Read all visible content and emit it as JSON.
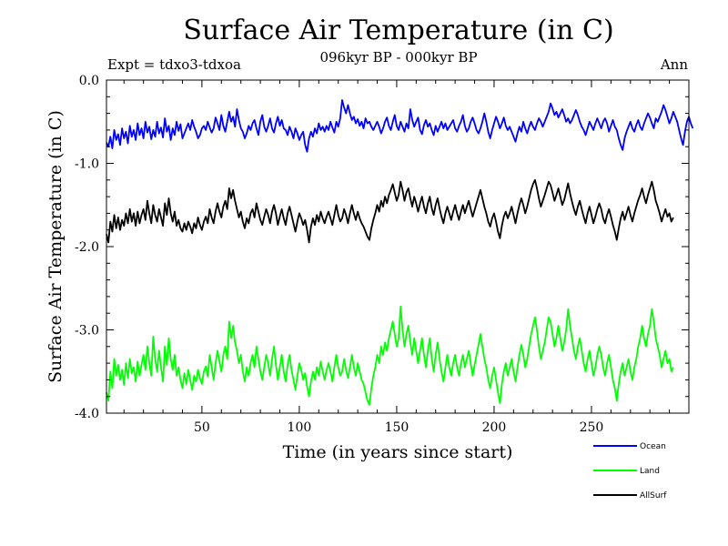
{
  "chart_data": {
    "type": "line",
    "title": "Surface Air Temperature (in C)",
    "subtitle": "096kyr BP - 000kyr BP",
    "experiment": "Expt = tdxo3-tdxoa",
    "season": "Ann",
    "xlabel": "Time (in years since start)",
    "ylabel": "Surface Air Temperature (in C)",
    "xlim": [
      1,
      300
    ],
    "ylim": [
      -4.0,
      0.0
    ],
    "x_ticks": [
      50,
      100,
      150,
      200,
      250
    ],
    "y_ticks": [
      "0.0",
      "-1.0",
      "-2.0",
      "-3.0",
      "-4.0"
    ],
    "y_tick_values": [
      0.0,
      -1.0,
      -2.0,
      -3.0,
      -4.0
    ],
    "grid": false,
    "legend_position": "bottom-right",
    "x_start": 1,
    "series": [
      {
        "name": "Ocean",
        "color": "#0000ff",
        "values": [
          -0.75,
          -0.8,
          -0.68,
          -0.82,
          -0.6,
          -0.72,
          -0.65,
          -0.78,
          -0.58,
          -0.7,
          -0.62,
          -0.76,
          -0.55,
          -0.68,
          -0.6,
          -0.72,
          -0.52,
          -0.66,
          -0.58,
          -0.7,
          -0.5,
          -0.63,
          -0.56,
          -0.71,
          -0.6,
          -0.68,
          -0.5,
          -0.64,
          -0.57,
          -0.69,
          -0.46,
          -0.62,
          -0.55,
          -0.72,
          -0.58,
          -0.66,
          -0.5,
          -0.61,
          -0.53,
          -0.7,
          -0.64,
          -0.58,
          -0.52,
          -0.6,
          -0.48,
          -0.56,
          -0.62,
          -0.7,
          -0.66,
          -0.58,
          -0.55,
          -0.6,
          -0.5,
          -0.57,
          -0.63,
          -0.58,
          -0.45,
          -0.52,
          -0.6,
          -0.42,
          -0.55,
          -0.62,
          -0.5,
          -0.38,
          -0.5,
          -0.44,
          -0.56,
          -0.35,
          -0.48,
          -0.58,
          -0.62,
          -0.7,
          -0.64,
          -0.55,
          -0.6,
          -0.52,
          -0.48,
          -0.58,
          -0.66,
          -0.5,
          -0.42,
          -0.56,
          -0.62,
          -0.55,
          -0.46,
          -0.58,
          -0.63,
          -0.52,
          -0.44,
          -0.55,
          -0.48,
          -0.58,
          -0.6,
          -0.66,
          -0.56,
          -0.62,
          -0.7,
          -0.58,
          -0.64,
          -0.72,
          -0.66,
          -0.62,
          -0.78,
          -0.86,
          -0.7,
          -0.62,
          -0.68,
          -0.58,
          -0.64,
          -0.52,
          -0.6,
          -0.56,
          -0.62,
          -0.55,
          -0.6,
          -0.5,
          -0.57,
          -0.63,
          -0.5,
          -0.56,
          -0.46,
          -0.24,
          -0.33,
          -0.4,
          -0.3,
          -0.4,
          -0.48,
          -0.44,
          -0.52,
          -0.47,
          -0.55,
          -0.5,
          -0.58,
          -0.46,
          -0.52,
          -0.5,
          -0.56,
          -0.6,
          -0.55,
          -0.5,
          -0.56,
          -0.64,
          -0.58,
          -0.5,
          -0.45,
          -0.55,
          -0.6,
          -0.5,
          -0.42,
          -0.55,
          -0.6,
          -0.5,
          -0.56,
          -0.62,
          -0.52,
          -0.58,
          -0.35,
          -0.48,
          -0.56,
          -0.5,
          -0.45,
          -0.6,
          -0.65,
          -0.54,
          -0.48,
          -0.56,
          -0.52,
          -0.6,
          -0.66,
          -0.55,
          -0.62,
          -0.56,
          -0.5,
          -0.58,
          -0.52,
          -0.6,
          -0.56,
          -0.52,
          -0.48,
          -0.58,
          -0.62,
          -0.55,
          -0.5,
          -0.42,
          -0.55,
          -0.62,
          -0.58,
          -0.5,
          -0.45,
          -0.52,
          -0.6,
          -0.64,
          -0.58,
          -0.5,
          -0.4,
          -0.5,
          -0.62,
          -0.7,
          -0.6,
          -0.52,
          -0.44,
          -0.5,
          -0.58,
          -0.52,
          -0.45,
          -0.55,
          -0.6,
          -0.56,
          -0.62,
          -0.68,
          -0.74,
          -0.64,
          -0.56,
          -0.62,
          -0.5,
          -0.58,
          -0.64,
          -0.56,
          -0.5,
          -0.56,
          -0.6,
          -0.52,
          -0.46,
          -0.5,
          -0.56,
          -0.5,
          -0.44,
          -0.38,
          -0.28,
          -0.34,
          -0.42,
          -0.38,
          -0.45,
          -0.4,
          -0.35,
          -0.42,
          -0.5,
          -0.46,
          -0.52,
          -0.48,
          -0.42,
          -0.36,
          -0.42,
          -0.5,
          -0.56,
          -0.6,
          -0.66,
          -0.58,
          -0.5,
          -0.55,
          -0.6,
          -0.52,
          -0.46,
          -0.52,
          -0.58,
          -0.5,
          -0.46,
          -0.52,
          -0.62,
          -0.55,
          -0.48,
          -0.56,
          -0.6,
          -0.7,
          -0.78,
          -0.84,
          -0.7,
          -0.62,
          -0.56,
          -0.5,
          -0.58,
          -0.62,
          -0.54,
          -0.48,
          -0.56,
          -0.6,
          -0.52,
          -0.46,
          -0.4,
          -0.45,
          -0.52,
          -0.58,
          -0.46,
          -0.5,
          -0.44,
          -0.38,
          -0.3,
          -0.36,
          -0.44,
          -0.52,
          -0.46,
          -0.38,
          -0.44,
          -0.5,
          -0.6,
          -0.7,
          -0.78,
          -0.62,
          -0.5,
          -0.44,
          -0.52,
          -0.58
        ],
        "legend_label": "Ocean"
      },
      {
        "name": "Land",
        "color": "#00ff00",
        "values": [
          -3.75,
          -3.85,
          -3.5,
          -3.7,
          -3.35,
          -3.55,
          -3.42,
          -3.6,
          -3.48,
          -3.66,
          -3.4,
          -3.58,
          -3.35,
          -3.52,
          -3.45,
          -3.62,
          -3.38,
          -3.55,
          -3.42,
          -3.3,
          -3.48,
          -3.2,
          -3.4,
          -3.55,
          -3.08,
          -3.35,
          -3.5,
          -3.25,
          -3.45,
          -3.62,
          -3.2,
          -3.42,
          -3.1,
          -3.35,
          -3.48,
          -3.3,
          -3.55,
          -3.45,
          -3.6,
          -3.7,
          -3.52,
          -3.65,
          -3.48,
          -3.6,
          -3.72,
          -3.55,
          -3.62,
          -3.48,
          -3.58,
          -3.65,
          -3.5,
          -3.44,
          -3.56,
          -3.3,
          -3.45,
          -3.6,
          -3.4,
          -3.25,
          -3.38,
          -3.5,
          -3.3,
          -3.2,
          -3.35,
          -2.9,
          -3.1,
          -2.95,
          -3.15,
          -3.25,
          -3.4,
          -3.3,
          -3.5,
          -3.62,
          -3.45,
          -3.55,
          -3.4,
          -3.3,
          -3.45,
          -3.2,
          -3.35,
          -3.5,
          -3.6,
          -3.45,
          -3.3,
          -3.4,
          -3.55,
          -3.35,
          -3.2,
          -3.42,
          -3.6,
          -3.45,
          -3.3,
          -3.5,
          -3.62,
          -3.42,
          -3.3,
          -3.48,
          -3.6,
          -3.72,
          -3.55,
          -3.4,
          -3.48,
          -3.6,
          -3.52,
          -3.68,
          -3.8,
          -3.62,
          -3.5,
          -3.6,
          -3.45,
          -3.55,
          -3.38,
          -3.5,
          -3.6,
          -3.48,
          -3.4,
          -3.5,
          -3.62,
          -3.45,
          -3.3,
          -3.45,
          -3.55,
          -3.5,
          -3.35,
          -3.48,
          -3.58,
          -3.45,
          -3.3,
          -3.45,
          -3.55,
          -3.4,
          -3.5,
          -3.6,
          -3.65,
          -3.75,
          -3.85,
          -3.9,
          -3.7,
          -3.55,
          -3.45,
          -3.3,
          -3.4,
          -3.2,
          -3.3,
          -3.15,
          -3.25,
          -3.1,
          -3.0,
          -2.9,
          -3.05,
          -3.2,
          -3.1,
          -2.72,
          -3.0,
          -3.2,
          -3.05,
          -2.95,
          -3.15,
          -3.3,
          -3.1,
          -3.25,
          -3.4,
          -3.25,
          -3.1,
          -3.3,
          -3.45,
          -3.25,
          -3.1,
          -3.35,
          -3.5,
          -3.3,
          -3.15,
          -3.35,
          -3.5,
          -3.62,
          -3.45,
          -3.3,
          -3.45,
          -3.55,
          -3.4,
          -3.3,
          -3.45,
          -3.55,
          -3.4,
          -3.3,
          -3.45,
          -3.35,
          -3.25,
          -3.4,
          -3.55,
          -3.42,
          -3.3,
          -3.18,
          -3.05,
          -3.2,
          -3.35,
          -3.45,
          -3.6,
          -3.7,
          -3.55,
          -3.45,
          -3.6,
          -3.75,
          -3.88,
          -3.65,
          -3.5,
          -3.4,
          -3.55,
          -3.45,
          -3.35,
          -3.5,
          -3.62,
          -3.45,
          -3.3,
          -3.18,
          -3.3,
          -3.45,
          -3.35,
          -3.2,
          -3.05,
          -2.95,
          -2.85,
          -3.0,
          -3.2,
          -3.35,
          -3.25,
          -3.15,
          -3.0,
          -2.85,
          -2.9,
          -3.05,
          -3.2,
          -3.1,
          -2.95,
          -3.1,
          -3.25,
          -3.15,
          -3.0,
          -2.75,
          -2.95,
          -3.1,
          -3.25,
          -3.35,
          -3.2,
          -3.1,
          -3.25,
          -3.4,
          -3.5,
          -3.35,
          -3.25,
          -3.4,
          -3.55,
          -3.45,
          -3.3,
          -3.2,
          -3.3,
          -3.45,
          -3.55,
          -3.4,
          -3.3,
          -3.45,
          -3.6,
          -3.7,
          -3.85,
          -3.65,
          -3.5,
          -3.4,
          -3.55,
          -3.45,
          -3.35,
          -3.5,
          -3.6,
          -3.45,
          -3.35,
          -3.2,
          -3.1,
          -2.95,
          -3.1,
          -3.2,
          -3.05,
          -2.95,
          -2.75,
          -2.9,
          -3.1,
          -3.2,
          -3.3,
          -3.45,
          -3.35,
          -3.25,
          -3.4,
          -3.35,
          -3.5,
          -3.45
        ],
        "legend_label": "Land"
      },
      {
        "name": "AllSurf",
        "color": "#000000",
        "values": [
          -1.85,
          -1.95,
          -1.7,
          -1.82,
          -1.62,
          -1.78,
          -1.65,
          -1.8,
          -1.68,
          -1.75,
          -1.6,
          -1.72,
          -1.55,
          -1.7,
          -1.6,
          -1.75,
          -1.58,
          -1.72,
          -1.62,
          -1.55,
          -1.68,
          -1.45,
          -1.6,
          -1.72,
          -1.5,
          -1.62,
          -1.7,
          -1.55,
          -1.65,
          -1.75,
          -1.48,
          -1.62,
          -1.42,
          -1.6,
          -1.7,
          -1.58,
          -1.75,
          -1.68,
          -1.78,
          -1.82,
          -1.72,
          -1.8,
          -1.7,
          -1.76,
          -1.84,
          -1.72,
          -1.78,
          -1.65,
          -1.74,
          -1.8,
          -1.7,
          -1.64,
          -1.72,
          -1.55,
          -1.65,
          -1.72,
          -1.58,
          -1.48,
          -1.58,
          -1.65,
          -1.52,
          -1.45,
          -1.55,
          -1.3,
          -1.42,
          -1.32,
          -1.45,
          -1.55,
          -1.65,
          -1.58,
          -1.7,
          -1.78,
          -1.66,
          -1.72,
          -1.6,
          -1.55,
          -1.65,
          -1.48,
          -1.58,
          -1.68,
          -1.74,
          -1.64,
          -1.55,
          -1.62,
          -1.72,
          -1.58,
          -1.5,
          -1.6,
          -1.74,
          -1.64,
          -1.55,
          -1.66,
          -1.74,
          -1.6,
          -1.52,
          -1.62,
          -1.72,
          -1.82,
          -1.7,
          -1.6,
          -1.66,
          -1.74,
          -1.68,
          -1.8,
          -1.95,
          -1.76,
          -1.66,
          -1.74,
          -1.62,
          -1.7,
          -1.58,
          -1.66,
          -1.72,
          -1.64,
          -1.58,
          -1.66,
          -1.74,
          -1.62,
          -1.5,
          -1.62,
          -1.7,
          -1.66,
          -1.55,
          -1.62,
          -1.72,
          -1.6,
          -1.5,
          -1.6,
          -1.68,
          -1.58,
          -1.66,
          -1.72,
          -1.76,
          -1.82,
          -1.88,
          -1.92,
          -1.78,
          -1.68,
          -1.6,
          -1.5,
          -1.58,
          -1.45,
          -1.52,
          -1.4,
          -1.48,
          -1.38,
          -1.32,
          -1.25,
          -1.35,
          -1.45,
          -1.38,
          -1.22,
          -1.32,
          -1.45,
          -1.35,
          -1.3,
          -1.42,
          -1.52,
          -1.4,
          -1.48,
          -1.58,
          -1.48,
          -1.4,
          -1.52,
          -1.6,
          -1.48,
          -1.4,
          -1.54,
          -1.62,
          -1.5,
          -1.42,
          -1.54,
          -1.64,
          -1.72,
          -1.6,
          -1.52,
          -1.6,
          -1.68,
          -1.58,
          -1.5,
          -1.6,
          -1.68,
          -1.58,
          -1.5,
          -1.6,
          -1.52,
          -1.45,
          -1.55,
          -1.64,
          -1.56,
          -1.48,
          -1.4,
          -1.32,
          -1.42,
          -1.52,
          -1.6,
          -1.7,
          -1.76,
          -1.66,
          -1.6,
          -1.7,
          -1.82,
          -1.9,
          -1.75,
          -1.64,
          -1.58,
          -1.66,
          -1.6,
          -1.52,
          -1.62,
          -1.72,
          -1.6,
          -1.5,
          -1.42,
          -1.5,
          -1.6,
          -1.52,
          -1.42,
          -1.32,
          -1.25,
          -1.2,
          -1.3,
          -1.42,
          -1.52,
          -1.45,
          -1.38,
          -1.3,
          -1.22,
          -1.26,
          -1.35,
          -1.45,
          -1.38,
          -1.3,
          -1.4,
          -1.5,
          -1.44,
          -1.34,
          -1.24,
          -1.36,
          -1.46,
          -1.55,
          -1.62,
          -1.52,
          -1.45,
          -1.55,
          -1.64,
          -1.72,
          -1.6,
          -1.52,
          -1.62,
          -1.72,
          -1.64,
          -1.55,
          -1.48,
          -1.55,
          -1.66,
          -1.72,
          -1.62,
          -1.55,
          -1.64,
          -1.74,
          -1.82,
          -1.92,
          -1.78,
          -1.66,
          -1.58,
          -1.68,
          -1.6,
          -1.52,
          -1.62,
          -1.7,
          -1.6,
          -1.52,
          -1.44,
          -1.38,
          -1.3,
          -1.4,
          -1.48,
          -1.38,
          -1.3,
          -1.22,
          -1.32,
          -1.45,
          -1.52,
          -1.6,
          -1.7,
          -1.62,
          -1.55,
          -1.64,
          -1.6,
          -1.7,
          -1.65
        ],
        "legend_label": "AllSurf"
      }
    ]
  }
}
